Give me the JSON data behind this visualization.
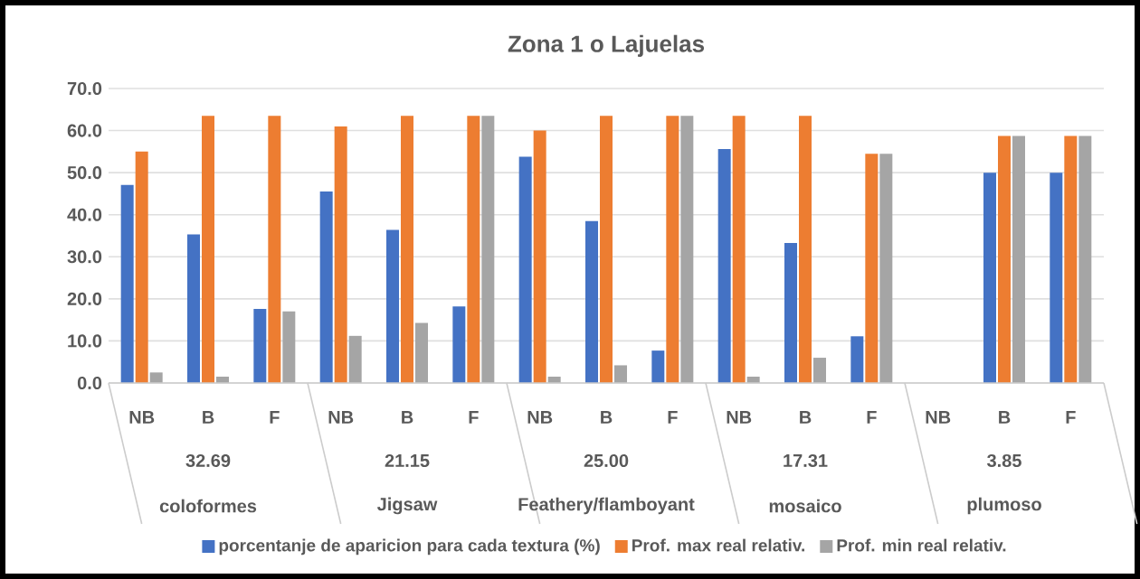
{
  "chart_data": {
    "type": "bar",
    "title": "Zona 1 o Lajuelas",
    "categories": [
      "NB",
      "B",
      "F",
      "NB",
      "B",
      "F",
      "NB",
      "B",
      "F",
      "NB",
      "B",
      "F",
      "NB",
      "B",
      "F"
    ],
    "series": [
      {
        "name": "porcentanje de aparicion para cada textura (%)",
        "color": "#4472c4",
        "values": [
          47.1,
          35.3,
          17.6,
          45.5,
          36.4,
          18.2,
          53.8,
          38.5,
          7.7,
          55.6,
          33.3,
          11.1,
          null,
          50.0,
          50.0
        ]
      },
      {
        "name": "Prof. max real relativ.",
        "color": "#ed7d31",
        "values": [
          55.0,
          63.5,
          63.5,
          61.0,
          63.5,
          63.5,
          60.0,
          63.5,
          63.5,
          63.5,
          63.5,
          54.5,
          null,
          58.7,
          58.7
        ]
      },
      {
        "name": "Prof. min real relativ.",
        "color": "#a5a5a5",
        "values": [
          2.5,
          1.5,
          17.0,
          11.2,
          14.3,
          63.5,
          1.5,
          4.2,
          63.5,
          1.5,
          6.0,
          54.5,
          null,
          58.7,
          58.7
        ]
      }
    ],
    "ylim": [
      0,
      70
    ],
    "yticks": [
      {
        "value": 0,
        "label": "0.0"
      },
      {
        "value": 10,
        "label": "10.0"
      },
      {
        "value": 20,
        "label": "20.0"
      },
      {
        "value": 30,
        "label": "30.0"
      },
      {
        "value": 40,
        "label": "40.0"
      },
      {
        "value": 50,
        "label": "50.0"
      },
      {
        "value": 60,
        "label": "60.0"
      },
      {
        "value": 70,
        "label": "70.0"
      }
    ],
    "grid": "y",
    "legend": "bottom",
    "annotations": [
      "32.69",
      "coloformes",
      "21.15",
      "Jigsaw",
      "25.00",
      "Feathery/flamboyant",
      "17.31",
      "mosaico",
      "3.85",
      "plumoso"
    ]
  }
}
